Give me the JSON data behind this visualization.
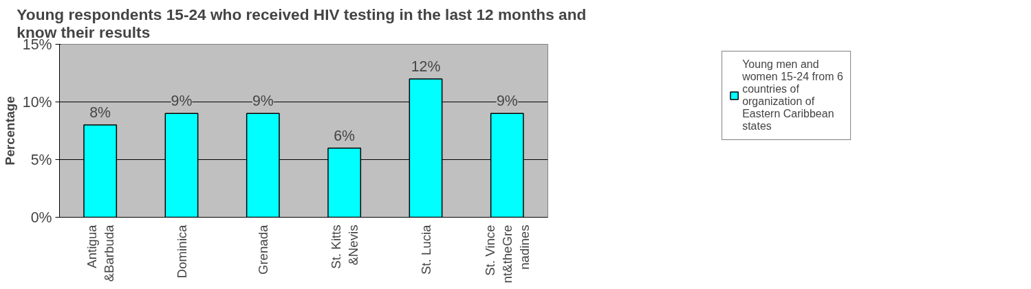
{
  "chart_data": {
    "type": "bar",
    "title": "Young respondents 15-24 who received HIV  testing in the last 12 months and know their results",
    "ylabel": "Percentage",
    "categories": [
      "Antigua &Barbuda",
      "Dominica",
      "Grenada",
      "St. Kitts &Nevis",
      "St. Lucia",
      "St. Vincent&theGrenadines"
    ],
    "series": [
      {
        "name": "Young men and women 15-24 from 6 countries of organization of Eastern Caribbean states",
        "color": "#00ffff",
        "values": [
          8,
          9,
          9,
          6,
          12,
          9
        ],
        "value_labels": [
          "8%",
          "9%",
          "9%",
          "6%",
          "12%",
          "9%"
        ]
      }
    ],
    "ylim": [
      0,
      15
    ],
    "yticks": [
      {
        "value": 0,
        "label": "0%"
      },
      {
        "value": 5,
        "label": "5%"
      },
      {
        "value": 10,
        "label": "10%"
      },
      {
        "value": 15,
        "label": "15%"
      }
    ],
    "grid": "y",
    "legend": "right"
  }
}
